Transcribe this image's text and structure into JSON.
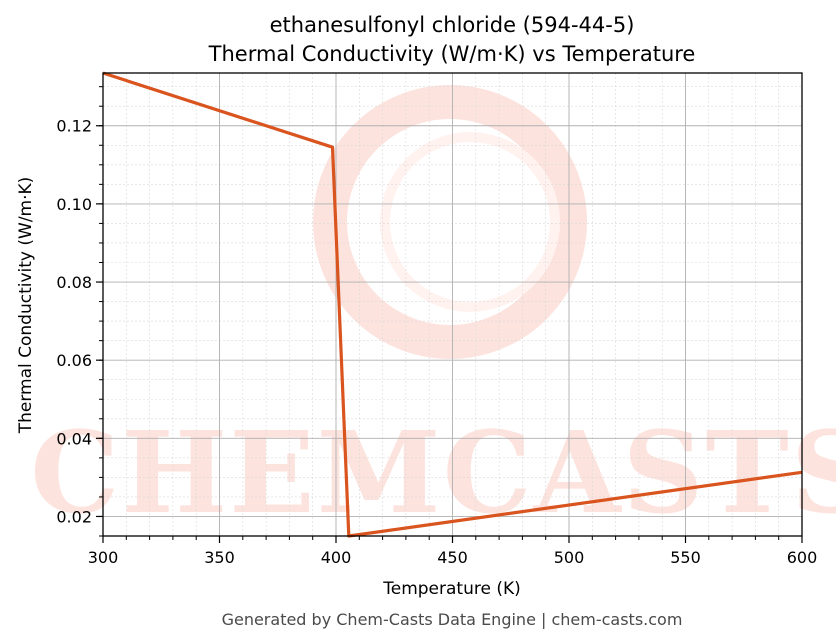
{
  "chart_data": {
    "type": "line",
    "title": "ethanesulfonyl chloride (594-44-5)",
    "subtitle": "Thermal Conductivity (W/m·K) vs Temperature",
    "xlabel": "Temperature (K)",
    "ylabel": "Thermal Conductivity (W/m·K)",
    "xlim": [
      300,
      600
    ],
    "ylim": [
      0.015,
      0.1335
    ],
    "x_ticks": [
      300,
      350,
      400,
      450,
      500,
      550,
      600
    ],
    "y_ticks": [
      0.02,
      0.04,
      0.06,
      0.08,
      0.1,
      0.12
    ],
    "y_tick_labels": [
      "0.02",
      "0.04",
      "0.06",
      "0.08",
      "0.10",
      "0.12"
    ],
    "grid": true,
    "legend": "none",
    "series": [
      {
        "color": "#d9541e",
        "x": [
          300,
          398.5,
          405.5,
          600
        ],
        "y": [
          0.1335,
          0.1145,
          0.015,
          0.0313
        ]
      }
    ]
  },
  "watermark": {
    "text": "CHEMCASTS",
    "color": "#fde3de"
  },
  "footer": "Generated by Chem-Casts Data Engine | chem-casts.com"
}
